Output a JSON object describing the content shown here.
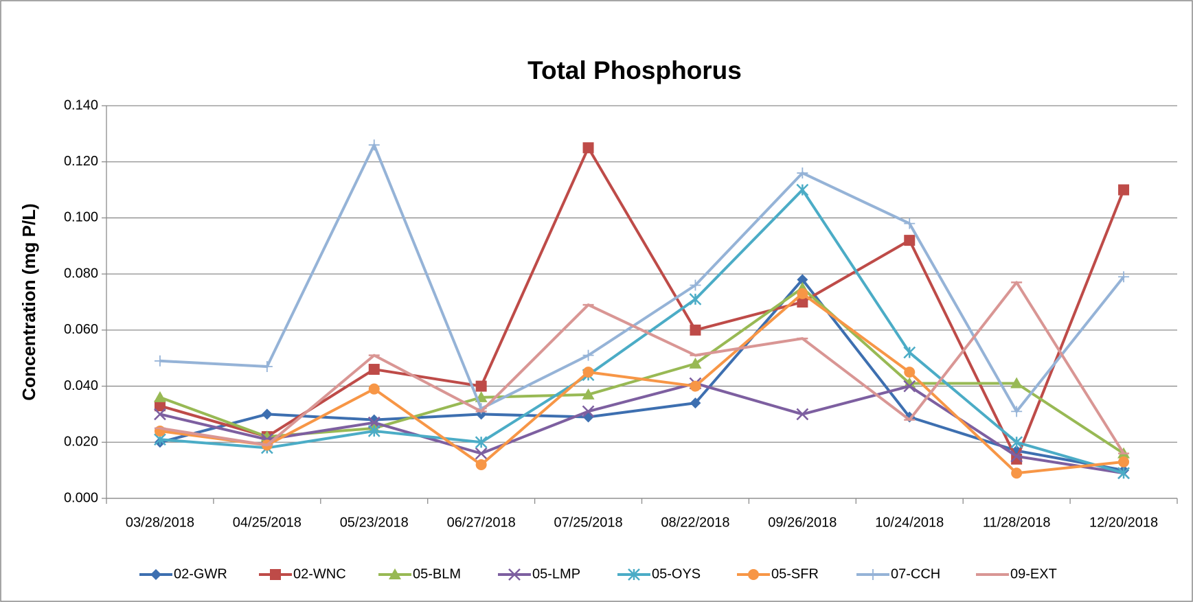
{
  "chart_data": {
    "type": "line",
    "title": "Total Phosphorus",
    "y_label": "Concentration (mg P/L)",
    "categories": [
      "03/28/2018",
      "04/25/2018",
      "05/23/2018",
      "06/27/2018",
      "07/25/2018",
      "08/22/2018",
      "09/26/2018",
      "10/24/2018",
      "11/28/2018",
      "12/20/2018"
    ],
    "ylim": [
      0,
      0.14
    ],
    "yticks": [
      {
        "value": 0,
        "label": "0.000"
      },
      {
        "value": 0.02,
        "label": "0.020"
      },
      {
        "value": 0.04,
        "label": "0.040"
      },
      {
        "value": 0.06,
        "label": "0.060"
      },
      {
        "value": 0.08,
        "label": "0.080"
      },
      {
        "value": 0.1,
        "label": "0.100"
      },
      {
        "value": 0.12,
        "label": "0.120"
      },
      {
        "value": 0.14,
        "label": "0.140"
      }
    ],
    "grid": true,
    "legend": "bottom",
    "series": [
      {
        "name": "02-GWR",
        "color": "#3d6fb0",
        "marker": "diamond",
        "values": [
          0.02,
          0.03,
          0.028,
          0.03,
          0.029,
          0.034,
          0.078,
          0.029,
          0.017,
          0.01
        ]
      },
      {
        "name": "02-WNC",
        "color": "#be4b48",
        "marker": "square",
        "values": [
          0.033,
          0.022,
          0.046,
          0.04,
          0.125,
          0.06,
          0.07,
          0.092,
          0.014,
          0.11
        ]
      },
      {
        "name": "05-BLM",
        "color": "#98b954",
        "marker": "triangle",
        "values": [
          0.036,
          0.022,
          0.025,
          0.036,
          0.037,
          0.048,
          0.075,
          0.041,
          0.041,
          0.016
        ]
      },
      {
        "name": "05-LMP",
        "color": "#7d5fa0",
        "marker": "x",
        "values": [
          0.03,
          0.021,
          0.027,
          0.016,
          0.031,
          0.041,
          0.03,
          0.04,
          0.015,
          0.009
        ]
      },
      {
        "name": "05-OYS",
        "color": "#4bacc6",
        "marker": "asterisk",
        "values": [
          0.021,
          0.018,
          0.024,
          0.02,
          0.044,
          0.071,
          0.11,
          0.052,
          0.02,
          0.009
        ]
      },
      {
        "name": "05-SFR",
        "color": "#f79646",
        "marker": "circle",
        "values": [
          0.024,
          0.019,
          0.039,
          0.012,
          0.045,
          0.04,
          0.073,
          0.045,
          0.009,
          0.013
        ]
      },
      {
        "name": "07-CCH",
        "color": "#95b3d7",
        "marker": "plus",
        "values": [
          0.049,
          0.047,
          0.126,
          0.032,
          0.051,
          0.076,
          0.116,
          0.098,
          0.031,
          0.079
        ]
      },
      {
        "name": "09-EXT",
        "color": "#d99694",
        "marker": "dash",
        "values": [
          0.025,
          0.019,
          0.051,
          0.031,
          0.069,
          0.051,
          0.057,
          0.028,
          0.077,
          0.016
        ]
      }
    ]
  }
}
